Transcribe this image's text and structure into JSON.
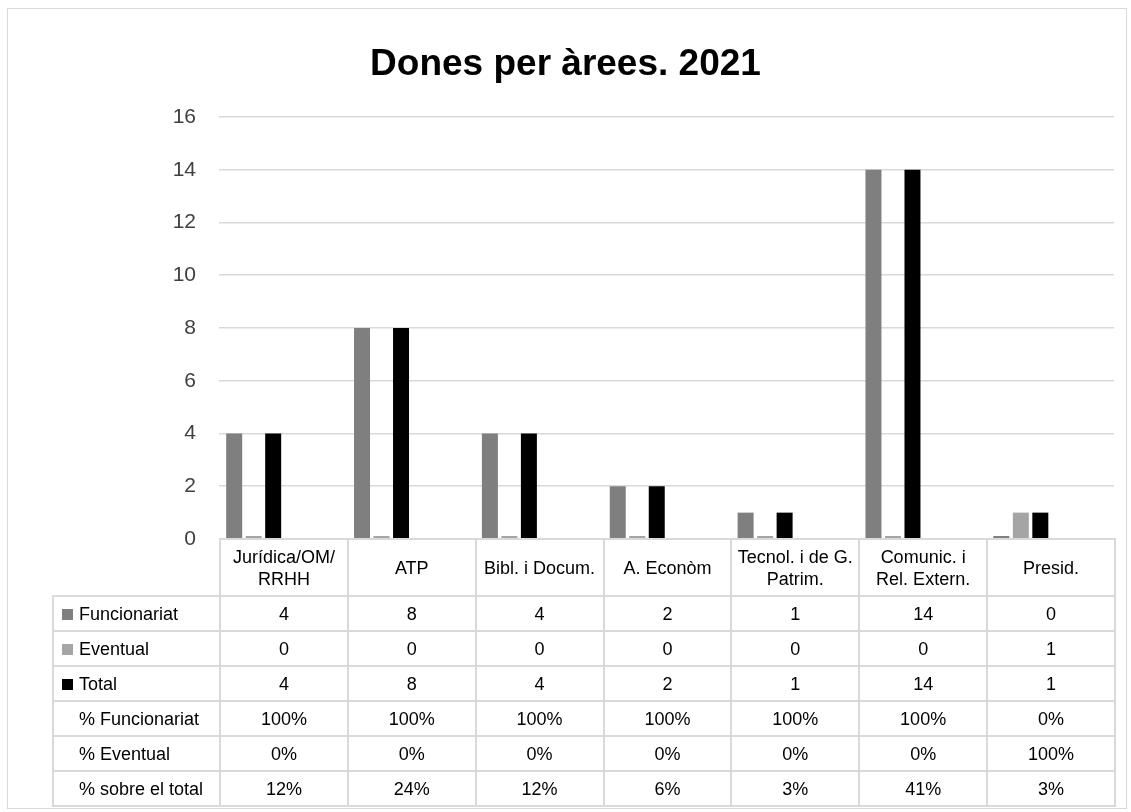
{
  "chart_data": {
    "type": "bar",
    "title": "Dones per àrees. 2021",
    "categories": [
      "Jurídica/OM/RRHH",
      "ATP",
      "Bibl. i Docum.",
      "A. Econòm",
      "Tecnol. i de G. Patrim.",
      "Comunic. i Rel. Extern.",
      "Presid."
    ],
    "series": [
      {
        "name": "Funcionariat",
        "color": "#7f7f7f",
        "values": [
          4,
          8,
          4,
          2,
          1,
          14,
          0
        ]
      },
      {
        "name": "Eventual",
        "color": "#a5a5a5",
        "values": [
          0,
          0,
          0,
          0,
          0,
          0,
          1
        ]
      },
      {
        "name": "Total",
        "color": "#000000",
        "values": [
          4,
          8,
          4,
          2,
          1,
          14,
          1
        ]
      },
      {
        "name": "% Funcionariat",
        "type": "other",
        "values": [
          null,
          null,
          null,
          null,
          null,
          null,
          null
        ],
        "value_labels": [
          "100%",
          "100%",
          "100%",
          "100%",
          "100%",
          "100%",
          "0%"
        ]
      },
      {
        "name": "% Eventual",
        "type": "other",
        "values": [
          null,
          null,
          null,
          null,
          null,
          null,
          null
        ],
        "value_labels": [
          "0%",
          "0%",
          "0%",
          "0%",
          "0%",
          "0%",
          "100%"
        ]
      },
      {
        "name": "% sobre el total",
        "type": "other",
        "values": [
          null,
          null,
          null,
          null,
          null,
          null,
          null
        ],
        "value_labels": [
          "12%",
          "24%",
          "12%",
          "6%",
          "3%",
          "41%",
          "3%"
        ]
      }
    ],
    "ylim": [
      0,
      16
    ],
    "yticks": [
      0,
      2,
      4,
      6,
      8,
      10,
      12,
      14,
      16
    ],
    "grid": "y",
    "legend": "bottom",
    "data_labels": true
  }
}
